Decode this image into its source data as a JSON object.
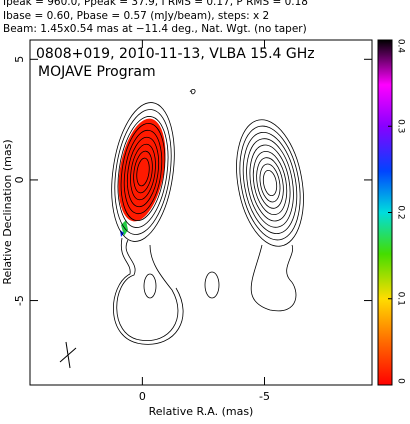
{
  "chart_data": {
    "type": "contour",
    "header": [
      "Ipeak = 960.0, Ppeak = 37.9, I RMS = 0.17, P RMS = 0.18",
      "Ibase = 0.60, Pbase = 0.57 (mJy/beam), steps: x 2",
      "Beam: 1.45x0.54 mas at −11.4 deg., Nat. Wgt. (no taper)"
    ],
    "title": "0808+019, 2010-11-13, VLBA 15.4 GHz",
    "subtitle": "MOJAVE Program",
    "xlabel": "Relative R.A. (mas)",
    "ylabel": "Relative Declination (mas)",
    "xlim": [
      4.6,
      -9.4
    ],
    "xticks": [
      0,
      -5
    ],
    "ylim": [
      -8.5,
      5.8
    ],
    "yticks": [
      -5,
      0,
      5
    ],
    "colorbar": {
      "lim": [
        0,
        0.4
      ],
      "ticks": [
        0,
        0.1,
        0.2,
        0.3,
        0.4
      ]
    }
  }
}
